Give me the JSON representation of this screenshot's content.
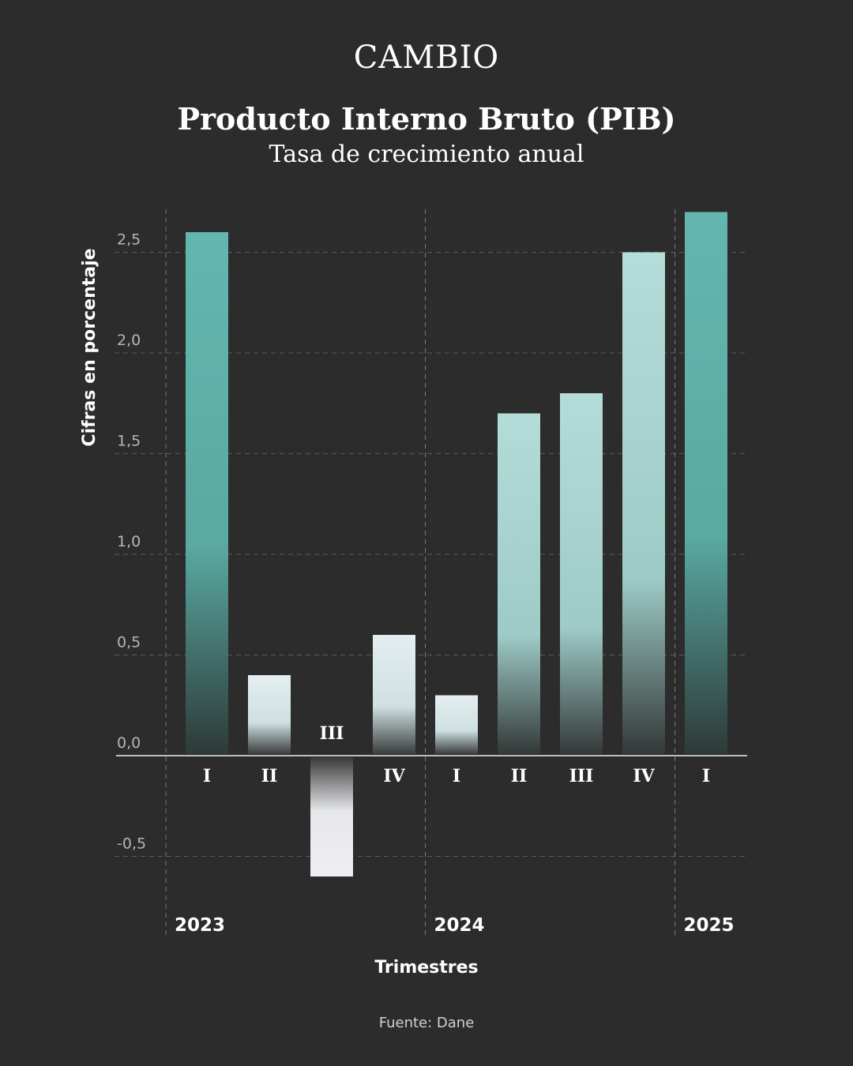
{
  "brand": "CAMBIO",
  "colors": {
    "background": "#2b2c2b",
    "bar_teal": "#5fb5ae",
    "bar_light": "#e8eaee",
    "axis": "#bdbdbd"
  },
  "chart_data": {
    "type": "bar",
    "title": "Producto Interno Bruto (PIB)",
    "subtitle": "Tasa de crecimiento anual",
    "xlabel": "Trimestres",
    "ylabel": "Cifras en porcentaje",
    "source": "Fuente: Dane",
    "ylim": [
      -0.7,
      2.75
    ],
    "yticks": [
      "-0,5",
      "0,0",
      "0,5",
      "1,0",
      "1,5",
      "2,0",
      "2,5"
    ],
    "ytick_values": [
      -0.5,
      0.0,
      0.5,
      1.0,
      1.5,
      2.0,
      2.5
    ],
    "grid": true,
    "categories": [
      "I",
      "II",
      "III",
      "IV",
      "I",
      "II",
      "III",
      "IV",
      "I"
    ],
    "years": [
      "2023",
      "2023",
      "2023",
      "2023",
      "2024",
      "2024",
      "2024",
      "2024",
      "2025"
    ],
    "year_labels": [
      "2023",
      "2024",
      "2025"
    ],
    "values": [
      2.6,
      0.4,
      -0.6,
      0.6,
      0.3,
      1.7,
      1.8,
      2.5,
      2.7
    ]
  }
}
